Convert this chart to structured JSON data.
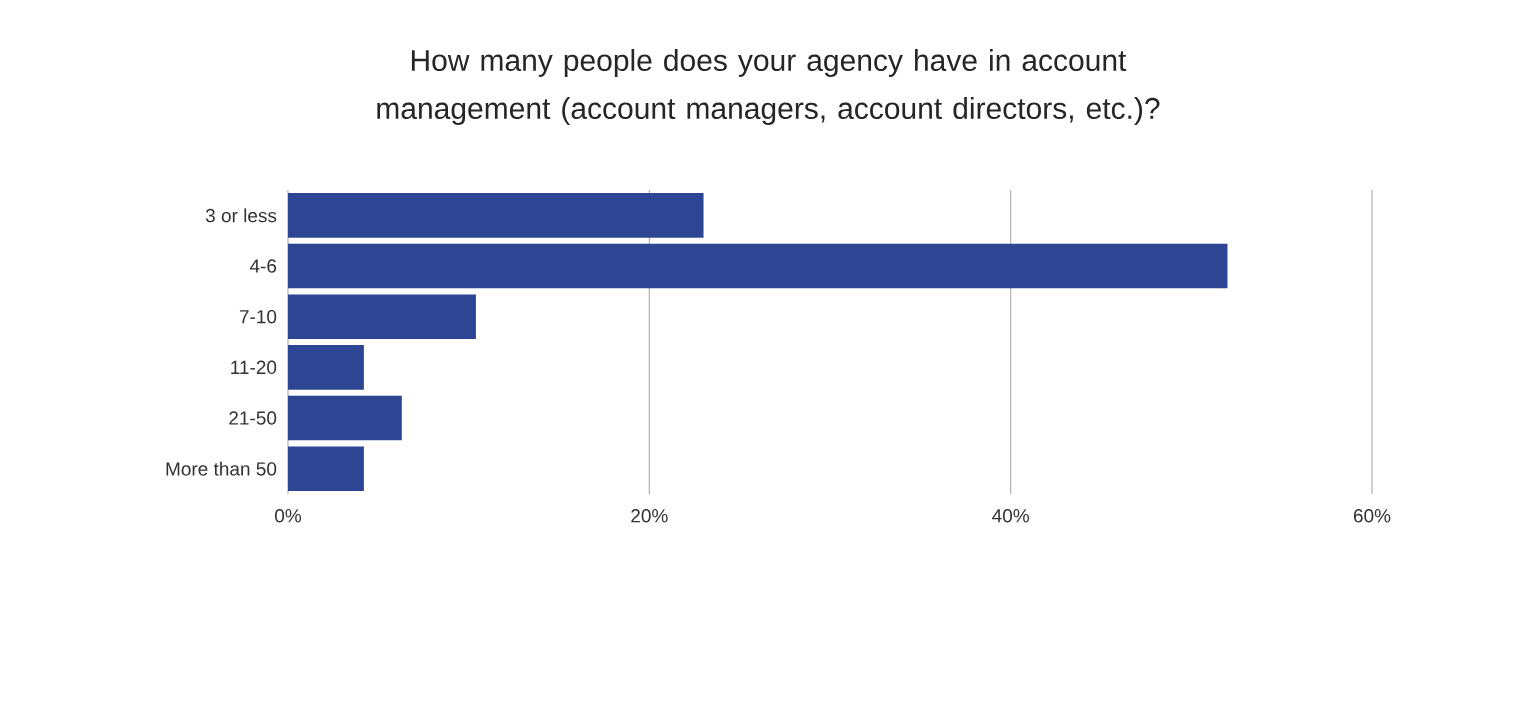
{
  "chart_data": {
    "type": "bar",
    "orientation": "horizontal",
    "title": "How many people does your agency have in account management (account managers, account directors, etc.)?",
    "categories": [
      "3 or less",
      "4-6",
      "7-10",
      "11-20",
      "21-50",
      "More than 50"
    ],
    "values": [
      23,
      52,
      10.4,
      4.2,
      6.3,
      4.2
    ],
    "color": "#2e4593",
    "xlim": [
      0,
      60
    ],
    "xticks": [
      {
        "value": 0,
        "label": "0%"
      },
      {
        "value": 20,
        "label": "20%"
      },
      {
        "value": 40,
        "label": "40%"
      },
      {
        "value": 60,
        "label": "60%"
      }
    ],
    "grid": "x"
  }
}
